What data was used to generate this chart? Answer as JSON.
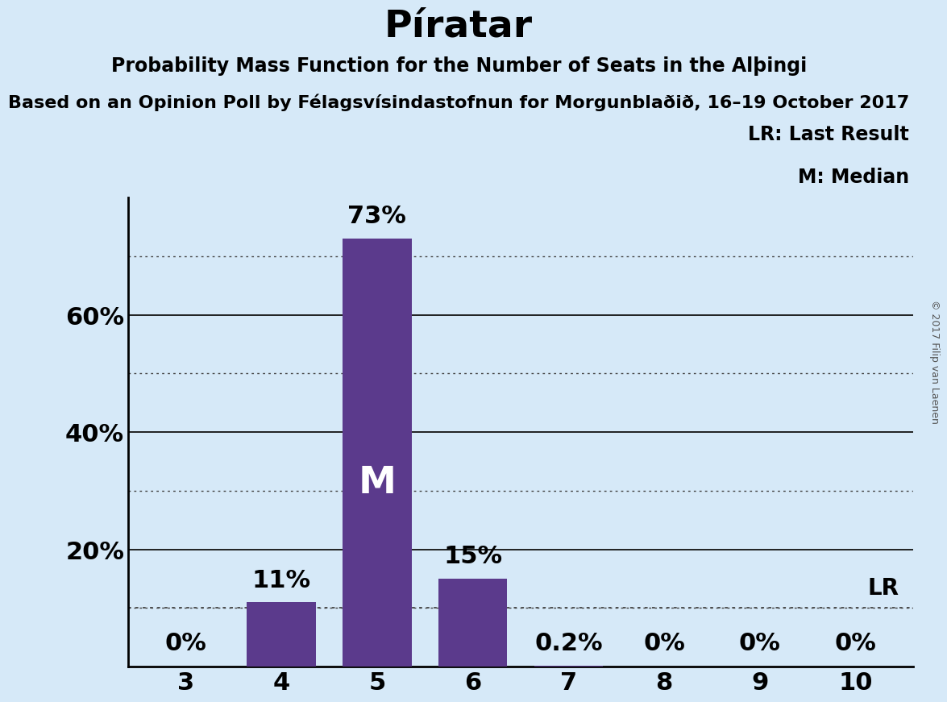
{
  "title": "Píratar",
  "subtitle1": "Probability Mass Function for the Number of Seats in the Alþingi",
  "subtitle2": "Based on an Opinion Poll by Félagsvísindastofnun for Morgunblaðið, 16–19 October 2017",
  "categories": [
    3,
    4,
    5,
    6,
    7,
    8,
    9,
    10
  ],
  "values": [
    0.0,
    11.0,
    73.0,
    15.0,
    0.2,
    0.0,
    0.0,
    0.0
  ],
  "bar_color": "#5b3a8c",
  "background_color": "#d6e9f8",
  "median_seat": 5,
  "lr_value": 10.0,
  "bar_labels": [
    "0%",
    "11%",
    "73%",
    "15%",
    "0.2%",
    "0%",
    "0%",
    "0%"
  ],
  "copyright": "© 2017 Filip van Laenen",
  "legend_line1": "LR: Last Result",
  "legend_line2": "M: Median",
  "lr_label": "LR",
  "median_label": "M",
  "ylim": [
    0,
    80
  ]
}
